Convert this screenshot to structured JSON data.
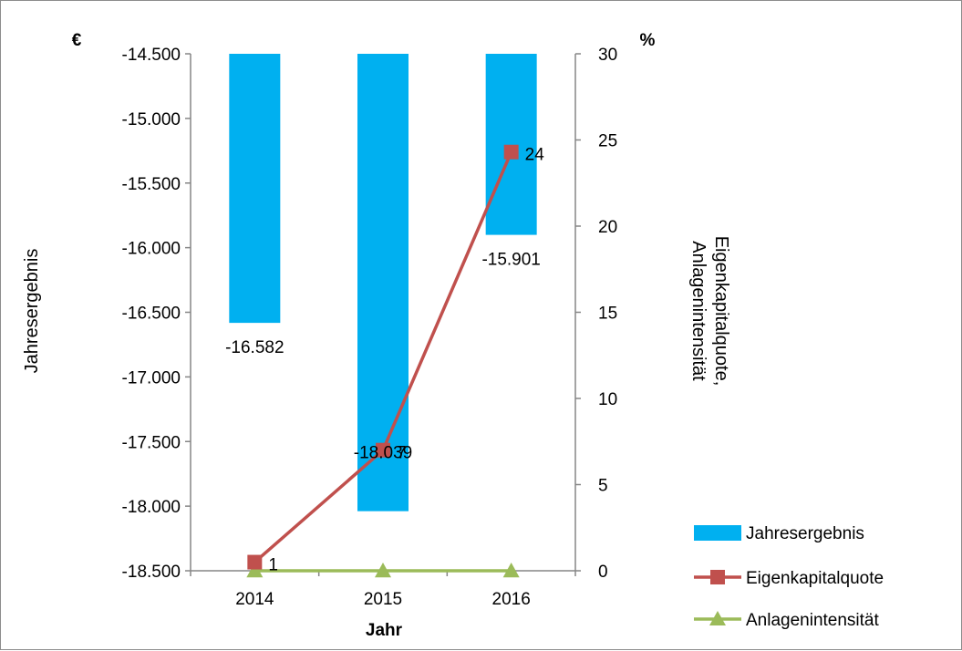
{
  "chart_data": {
    "type": "bar",
    "categories": [
      "2014",
      "2015",
      "2016"
    ],
    "xlabel": "Jahr",
    "left_axis": {
      "label": "Jahresergebnis",
      "unit": "€",
      "range": [
        -18500,
        -14500
      ],
      "ticks": [
        "-14.500",
        "-15.000",
        "-15.500",
        "-16.000",
        "-16.500",
        "-17.000",
        "-17.500",
        "-18.000",
        "-18.500"
      ],
      "tick_values": [
        -14500,
        -15000,
        -15500,
        -16000,
        -16500,
        -17000,
        -17500,
        -18000,
        -18500
      ]
    },
    "right_axis": {
      "label_line1": "Eigenkapitalquote,",
      "label_line2": "Anlagenintensität",
      "unit": "%",
      "range": [
        0,
        30
      ],
      "ticks": [
        "30",
        "25",
        "20",
        "15",
        "10",
        "5",
        "0"
      ],
      "tick_values": [
        30,
        25,
        20,
        15,
        10,
        5,
        0
      ]
    },
    "series": [
      {
        "name": "Jahresergebnis",
        "type": "bar",
        "axis": "left",
        "color": "#00b0f0",
        "values": [
          -16582,
          -18039,
          -15901
        ],
        "labels": [
          "-16.582",
          "-18.039",
          "-15.901"
        ]
      },
      {
        "name": "Eigenkapitalquote",
        "type": "line",
        "marker": "square",
        "axis": "right",
        "color": "#c0504d",
        "values": [
          0.5,
          7,
          24.3
        ],
        "labels": [
          "1",
          "7",
          "24"
        ]
      },
      {
        "name": "Anlagenintensität",
        "type": "line",
        "marker": "triangle",
        "axis": "right",
        "color": "#9bbb59",
        "values": [
          0,
          0,
          0
        ]
      }
    ],
    "legend_position": "right",
    "grid": false
  }
}
